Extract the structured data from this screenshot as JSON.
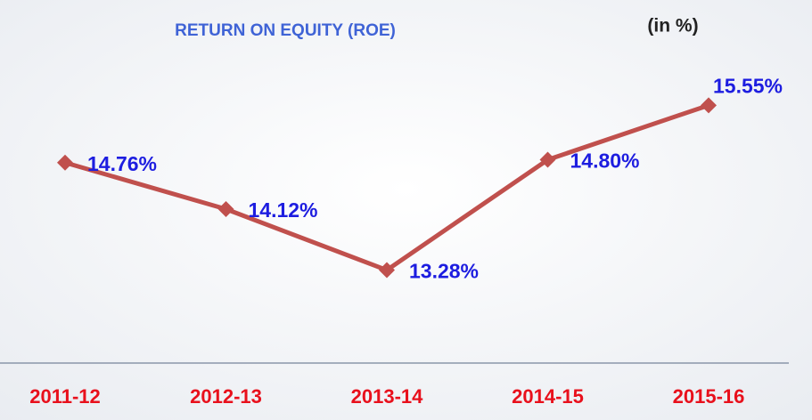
{
  "chart_data": {
    "type": "line",
    "title": "RETURN ON EQUITY (ROE)",
    "subtitle": "(in %)",
    "categories": [
      "2011-12",
      "2012-13",
      "2013-14",
      "2014-15",
      "2015-16"
    ],
    "series": [
      {
        "name": "ROE",
        "color": "#c0504d",
        "values": [
          14.76,
          14.12,
          13.28,
          14.8,
          15.55
        ],
        "value_labels": [
          "14.76%",
          "14.12%",
          "13.28%",
          "14.80%",
          "15.55%"
        ]
      }
    ],
    "ylim": [
      12,
      17
    ]
  }
}
